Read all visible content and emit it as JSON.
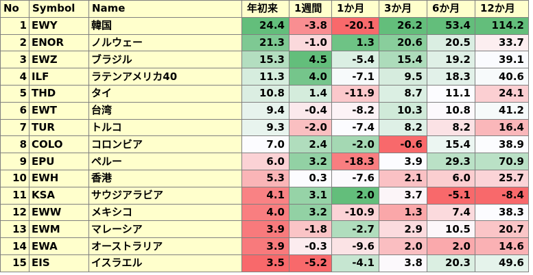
{
  "table": {
    "headers": [
      "No",
      "Symbol",
      "Name",
      "年初来",
      "1週間",
      "1か月",
      "3か月",
      "6か月",
      "12か月"
    ],
    "rows": [
      {
        "no": "1",
        "symbol": "EWY",
        "name": "韓国",
        "values": [
          "24.4",
          "-3.8",
          "-20.1",
          "26.2",
          "53.4",
          "114.2"
        ]
      },
      {
        "no": "2",
        "symbol": "ENOR",
        "name": "ノルウェー",
        "values": [
          "21.3",
          "-1.0",
          "1.3",
          "20.6",
          "20.5",
          "33.7"
        ]
      },
      {
        "no": "3",
        "symbol": "EWZ",
        "name": "ブラジル",
        "values": [
          "15.3",
          "4.5",
          "-5.4",
          "15.4",
          "19.2",
          "39.1"
        ]
      },
      {
        "no": "4",
        "symbol": "ILF",
        "name": "ラテンアメリカ40",
        "values": [
          "11.3",
          "4.0",
          "-7.1",
          "9.5",
          "18.3",
          "40.6"
        ]
      },
      {
        "no": "5",
        "symbol": "THD",
        "name": "タイ",
        "values": [
          "10.8",
          "1.4",
          "-11.9",
          "8.7",
          "11.1",
          "24.1"
        ]
      },
      {
        "no": "6",
        "symbol": "EWT",
        "name": "台湾",
        "values": [
          "9.4",
          "-0.4",
          "-8.2",
          "10.3",
          "10.8",
          "41.2"
        ]
      },
      {
        "no": "7",
        "symbol": "TUR",
        "name": "トルコ",
        "values": [
          "9.3",
          "-2.0",
          "-7.4",
          "8.2",
          "8.2",
          "16.4"
        ]
      },
      {
        "no": "8",
        "symbol": "COLO",
        "name": "コロンビア",
        "values": [
          "7.0",
          "2.4",
          "-2.0",
          "-0.6",
          "15.4",
          "38.9"
        ]
      },
      {
        "no": "9",
        "symbol": "EPU",
        "name": "ペルー",
        "values": [
          "6.0",
          "3.2",
          "-18.3",
          "3.9",
          "29.3",
          "70.9"
        ]
      },
      {
        "no": "10",
        "symbol": "EWH",
        "name": "香港",
        "values": [
          "5.3",
          "0.3",
          "-7.6",
          "2.1",
          "6.0",
          "25.7"
        ]
      },
      {
        "no": "11",
        "symbol": "KSA",
        "name": "サウジアラビア",
        "values": [
          "4.1",
          "3.1",
          "2.0",
          "3.7",
          "-5.1",
          "-8.4"
        ]
      },
      {
        "no": "12",
        "symbol": "EWW",
        "name": "メキシコ",
        "values": [
          "4.0",
          "3.2",
          "-10.9",
          "1.3",
          "7.4",
          "38.3"
        ]
      },
      {
        "no": "13",
        "symbol": "EWM",
        "name": "マレーシア",
        "values": [
          "3.9",
          "-1.8",
          "-2.7",
          "2.9",
          "10.5",
          "20.7"
        ]
      },
      {
        "no": "14",
        "symbol": "EWA",
        "name": "オーストラリア",
        "values": [
          "3.9",
          "-0.3",
          "-9.6",
          "2.0",
          "2.0",
          "14.6"
        ]
      },
      {
        "no": "15",
        "symbol": "EIS",
        "name": "イスラエル",
        "values": [
          "3.5",
          "-5.2",
          "-4.1",
          "3.8",
          "20.3",
          "49.6"
        ]
      }
    ]
  },
  "colors": {
    "header_bg": "#ffffcc",
    "positive": "#63be7b",
    "negative": "#f8696b",
    "neutral": "#fcfcff"
  }
}
